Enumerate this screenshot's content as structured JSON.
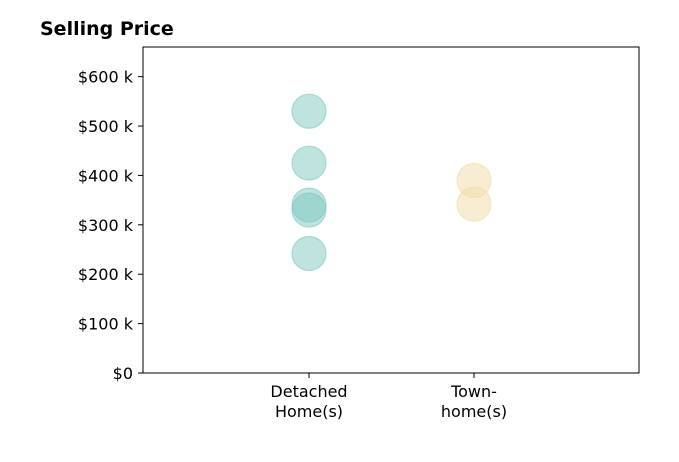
{
  "chart_data": {
    "type": "scatter",
    "title": "Selling Price",
    "xlabel": "",
    "ylabel": "",
    "categories": [
      [
        "Detached",
        "Home(s)"
      ],
      [
        "Town-",
        "home(s)"
      ]
    ],
    "ylim": [
      0,
      660000
    ],
    "yticks": [
      0,
      100000,
      200000,
      300000,
      400000,
      500000,
      600000
    ],
    "ytick_labels": [
      "$0",
      "$100 k",
      "$200 k",
      "$300 k",
      "$400 k",
      "$500 k",
      "$600 k"
    ],
    "grid": false,
    "series": [
      {
        "category": 0,
        "color": "#7fc7c0",
        "values": [
          530000,
          425000,
          340000,
          330000,
          242000
        ]
      },
      {
        "category": 1,
        "color": "#f2dca5",
        "values": [
          390000,
          342000
        ]
      }
    ]
  }
}
